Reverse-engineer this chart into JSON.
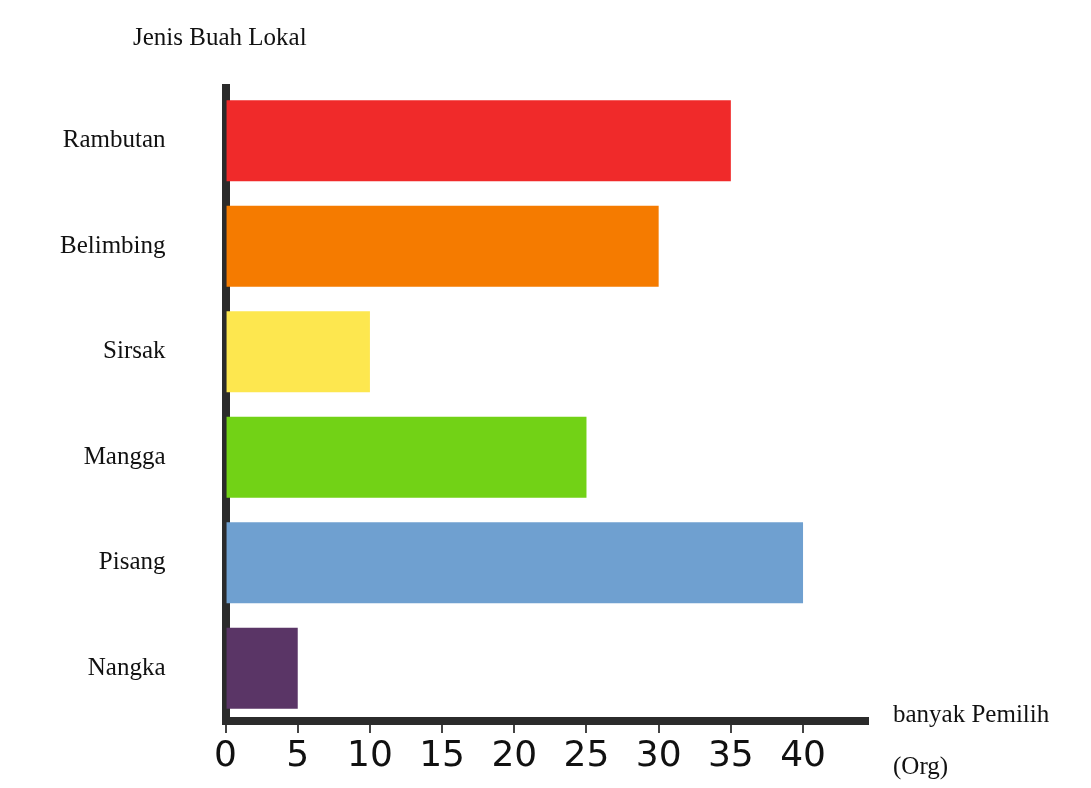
{
  "chart_data": {
    "type": "bar",
    "orientation": "horizontal",
    "ylabel": "Jenis Buah Lokal",
    "xlabel": "banyak Pemilih (Org)",
    "categories": [
      "Rambutan",
      "Belimbing",
      "Sirsak",
      "Mangga",
      "Pisang",
      "Nangka"
    ],
    "values": [
      35,
      30,
      10,
      25,
      40,
      5
    ],
    "colors": [
      "#f02a2a",
      "#f57b00",
      "#fde74f",
      "#72d216",
      "#6fa0d0",
      "#5a3566"
    ],
    "xlim": [
      0,
      44.5
    ],
    "xticks": [
      0,
      5,
      10,
      15,
      20,
      25,
      30,
      35,
      40
    ]
  }
}
